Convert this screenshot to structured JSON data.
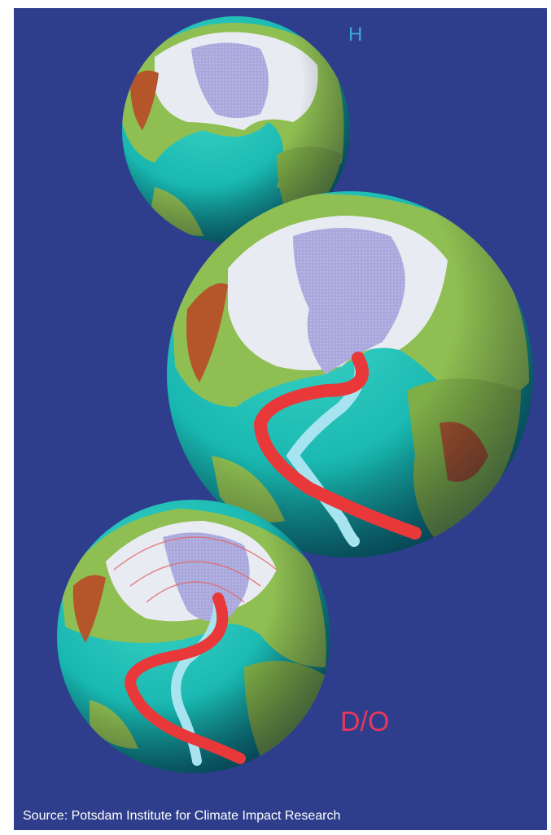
{
  "labels": {
    "top_globe": "H",
    "bottom_globe": "D/O"
  },
  "caption": "Source: Potsdam Institute for Climate Impact Research"
}
